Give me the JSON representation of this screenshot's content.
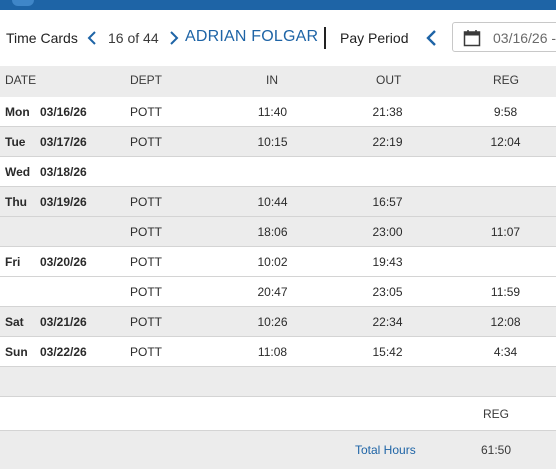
{
  "toolbar": {
    "title": "Time Cards",
    "record_position": "16 of 44",
    "employee_name": "ADRIAN FOLGAR",
    "pay_period_label": "Pay Period",
    "date_value": "03/16/26 -"
  },
  "columns": {
    "date": "DATE",
    "dept": "DEPT",
    "in": "IN",
    "out": "OUT",
    "reg": "REG"
  },
  "rows": [
    {
      "day": "Mon",
      "date": "03/16/26",
      "dept": "POTT",
      "in": "11:40",
      "out": "21:38",
      "reg": "9:58"
    },
    {
      "day": "Tue",
      "date": "03/17/26",
      "dept": "POTT",
      "in": "10:15",
      "out": "22:19",
      "reg": "12:04"
    },
    {
      "day": "Wed",
      "date": "03/18/26",
      "dept": "",
      "in": "",
      "out": "",
      "reg": ""
    },
    {
      "day": "Thu",
      "date": "03/19/26",
      "dept": "POTT",
      "in": "10:44",
      "out": "16:57",
      "reg": ""
    },
    {
      "day": "",
      "date": "",
      "dept": "POTT",
      "in": "18:06",
      "out": "23:00",
      "reg": "11:07"
    },
    {
      "day": "Fri",
      "date": "03/20/26",
      "dept": "POTT",
      "in": "10:02",
      "out": "19:43",
      "reg": ""
    },
    {
      "day": "",
      "date": "",
      "dept": "POTT",
      "in": "20:47",
      "out": "23:05",
      "reg": "11:59"
    },
    {
      "day": "Sat",
      "date": "03/21/26",
      "dept": "POTT",
      "in": "10:26",
      "out": "22:34",
      "reg": "12:08"
    },
    {
      "day": "Sun",
      "date": "03/22/26",
      "dept": "POTT",
      "in": "11:08",
      "out": "15:42",
      "reg": "4:34"
    }
  ],
  "summary": {
    "reg_header": "REG",
    "total_label": "Total Hours",
    "total_value": "61:50"
  },
  "colors": {
    "accent": "#1e64a6",
    "row_alt": "#ececec"
  }
}
